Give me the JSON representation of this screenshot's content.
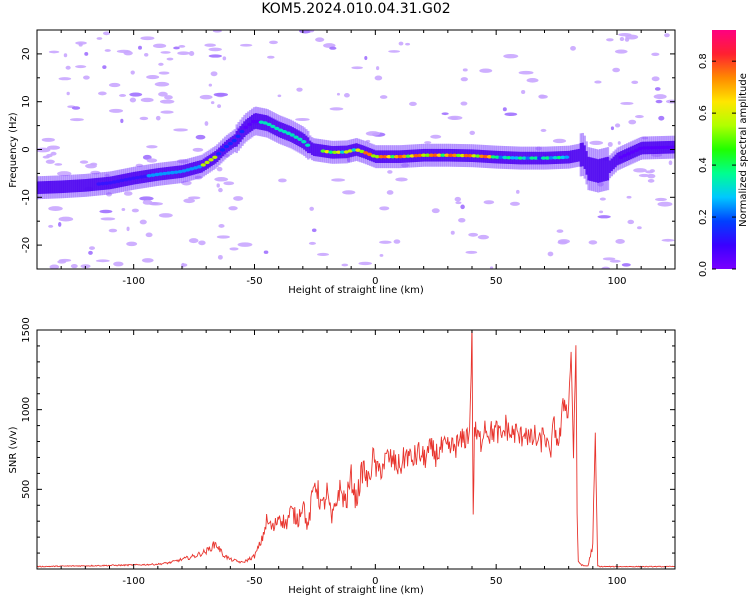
{
  "figure": {
    "title": "KOM5.2024.010.04.31.G02"
  },
  "colors": {
    "snr_line": "#e8342d",
    "axis": "#000000",
    "background": "#ffffff"
  },
  "chart_data": [
    {
      "type": "heatmap",
      "title": "KOM5.2024.010.04.31.G02",
      "xlabel": "Height of straight line (km)",
      "ylabel": "Frequency (Hz)",
      "xlim": [
        -140,
        124
      ],
      "ylim": [
        -25,
        25
      ],
      "xticks": [
        -100,
        -50,
        0,
        50,
        100
      ],
      "yticks": [
        -20,
        -10,
        0,
        10,
        20
      ],
      "colorbar": {
        "label": "Normalized spectral amplitude",
        "range": [
          0,
          0.92
        ],
        "ticks": [
          0.0,
          0.2,
          0.4,
          0.6,
          0.8
        ],
        "colormap": "rainbow"
      },
      "ridge": {
        "x": [
          -140,
          -130,
          -120,
          -110,
          -100,
          -90,
          -80,
          -72,
          -66,
          -62,
          -58,
          -54,
          -50,
          -45,
          -40,
          -35,
          -30,
          -26,
          -22,
          -18,
          -12,
          -8,
          -5,
          0,
          10,
          20,
          30,
          40,
          50,
          60,
          70,
          80,
          86,
          88,
          92,
          96,
          100,
          110,
          124
        ],
        "freq_hz": [
          -8,
          -7.8,
          -7.5,
          -7,
          -6,
          -5.2,
          -4.6,
          -3.5,
          -1.5,
          0.5,
          2,
          4.5,
          6,
          5.5,
          4.2,
          3.2,
          1.8,
          0,
          -0.3,
          -0.6,
          -0.5,
          0,
          -0.5,
          -1.5,
          -1.5,
          -1.2,
          -1.2,
          -1.3,
          -1.6,
          -1.8,
          -1.8,
          -1.6,
          -1,
          -4,
          -4.5,
          -4,
          -2,
          0.3,
          0.5
        ]
      },
      "peak_amplitude_near": {
        "x_range": [
          -5,
          50
        ],
        "freq_hz": -1.5,
        "value": 0.9
      }
    },
    {
      "type": "line",
      "xlabel": "Height of straight line (km)",
      "ylabel": "SNR (v/v)",
      "xlim": [
        -140,
        124
      ],
      "ylim": [
        0,
        1500
      ],
      "xticks": [
        -100,
        -50,
        0,
        50,
        100
      ],
      "yticks": [
        500,
        1000,
        1500
      ],
      "series": [
        {
          "color": "#e8342d",
          "x": [
            -140,
            -120,
            -100,
            -90,
            -85,
            -80,
            -75,
            -70,
            -66,
            -63,
            -60,
            -55,
            -50,
            -47,
            -45,
            -42,
            -40,
            -37,
            -35,
            -32,
            -30,
            -28,
            -25,
            -22,
            -20,
            -18,
            -15,
            -12,
            -10,
            -8,
            -5,
            -3,
            -1,
            1,
            3,
            5,
            7,
            10,
            13,
            15,
            18,
            20,
            23,
            25,
            28,
            30,
            33,
            35,
            37,
            39,
            40,
            40.5,
            41,
            41.5,
            42,
            44,
            45,
            47,
            50,
            52,
            54,
            56,
            58,
            60,
            62,
            64,
            66,
            68,
            70,
            72,
            74,
            76,
            78,
            80,
            81,
            82,
            83,
            83.5,
            84,
            85,
            86,
            88,
            90,
            91,
            92,
            93,
            95,
            100,
            110,
            124
          ],
          "values": [
            15,
            20,
            25,
            30,
            40,
            60,
            80,
            110,
            160,
            90,
            60,
            40,
            80,
            180,
            300,
            250,
            340,
            280,
            360,
            310,
            430,
            250,
            560,
            380,
            480,
            300,
            500,
            420,
            580,
            430,
            640,
            540,
            700,
            600,
            650,
            700,
            680,
            640,
            720,
            680,
            730,
            690,
            750,
            720,
            760,
            750,
            770,
            790,
            820,
            860,
            1500,
            300,
            880,
            850,
            830,
            800,
            920,
            850,
            870,
            820,
            900,
            840,
            860,
            820,
            880,
            800,
            830,
            780,
            860,
            700,
            900,
            780,
            1050,
            1000,
            1400,
            700,
            1440,
            300,
            50,
            30,
            20,
            20,
            150,
            800,
            20,
            15,
            15,
            15,
            15,
            15
          ]
        }
      ]
    }
  ]
}
